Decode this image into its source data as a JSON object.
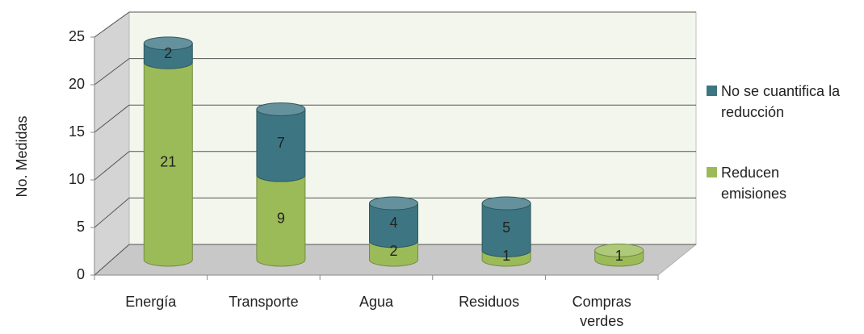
{
  "chart_data": {
    "type": "bar3d_stacked",
    "y_axis_label": "No. Medidas",
    "categories": [
      "Energía",
      "Transporte",
      "Agua",
      "Residuos",
      "Compras verdes"
    ],
    "series": [
      {
        "name": "No se cuantifica la reducción",
        "color": "#3d7682",
        "values": [
          2,
          7,
          4,
          5,
          null
        ]
      },
      {
        "name": "Reducen emisiones",
        "color": "#9bbb59",
        "values": [
          21,
          9,
          2,
          1,
          1
        ]
      }
    ],
    "ylim": [
      0,
      25
    ],
    "yticks": [
      0,
      5,
      10,
      15,
      20,
      25
    ],
    "grid": true,
    "legend": "right"
  }
}
